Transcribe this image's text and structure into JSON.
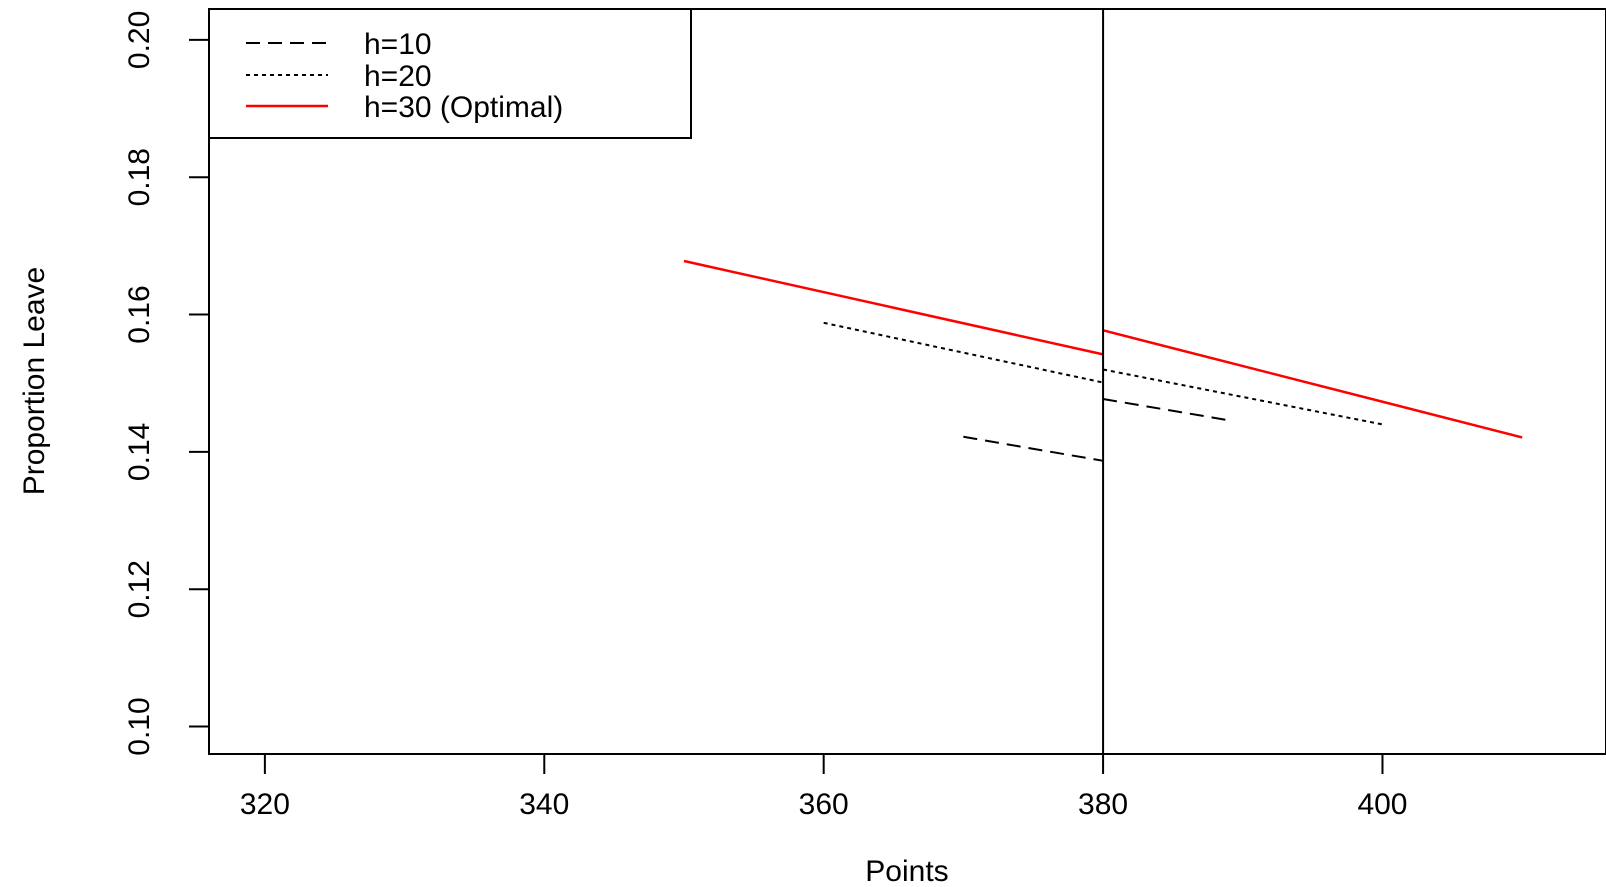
{
  "chart_data": {
    "type": "line",
    "xlabel": "Points",
    "ylabel": "Proportion Leave",
    "xlim": [
      316,
      416
    ],
    "ylim": [
      0.096,
      0.2045
    ],
    "x_ticks": [
      320,
      340,
      360,
      380,
      400
    ],
    "x_tick_labels": [
      "320",
      "340",
      "360",
      "380",
      "400"
    ],
    "y_ticks": [
      0.1,
      0.12,
      0.14,
      0.16,
      0.18,
      0.2
    ],
    "y_tick_labels": [
      "0.10",
      "0.12",
      "0.14",
      "0.16",
      "0.18",
      "0.20"
    ],
    "cutoff_x": 380,
    "legend_position": "top-left",
    "series": [
      {
        "name": "h=10",
        "color": "#000000",
        "line_style": "dashed",
        "segments": [
          [
            [
              370,
              0.1422
            ],
            [
              380,
              0.1387
            ]
          ],
          [
            [
              380,
              0.1477
            ],
            [
              389,
              0.1446
            ]
          ]
        ]
      },
      {
        "name": "h=20",
        "color": "#000000",
        "line_style": "dotted",
        "segments": [
          [
            [
              360,
              0.1588
            ],
            [
              380,
              0.1501
            ]
          ],
          [
            [
              380,
              0.152
            ],
            [
              400,
              0.144
            ]
          ]
        ]
      },
      {
        "name": "h=30 (Optimal)",
        "color": "#ff0000",
        "line_style": "solid",
        "segments": [
          [
            [
              350,
              0.1678
            ],
            [
              380,
              0.1542
            ]
          ],
          [
            [
              380,
              0.1577
            ],
            [
              410,
              0.1421
            ]
          ]
        ]
      }
    ]
  }
}
